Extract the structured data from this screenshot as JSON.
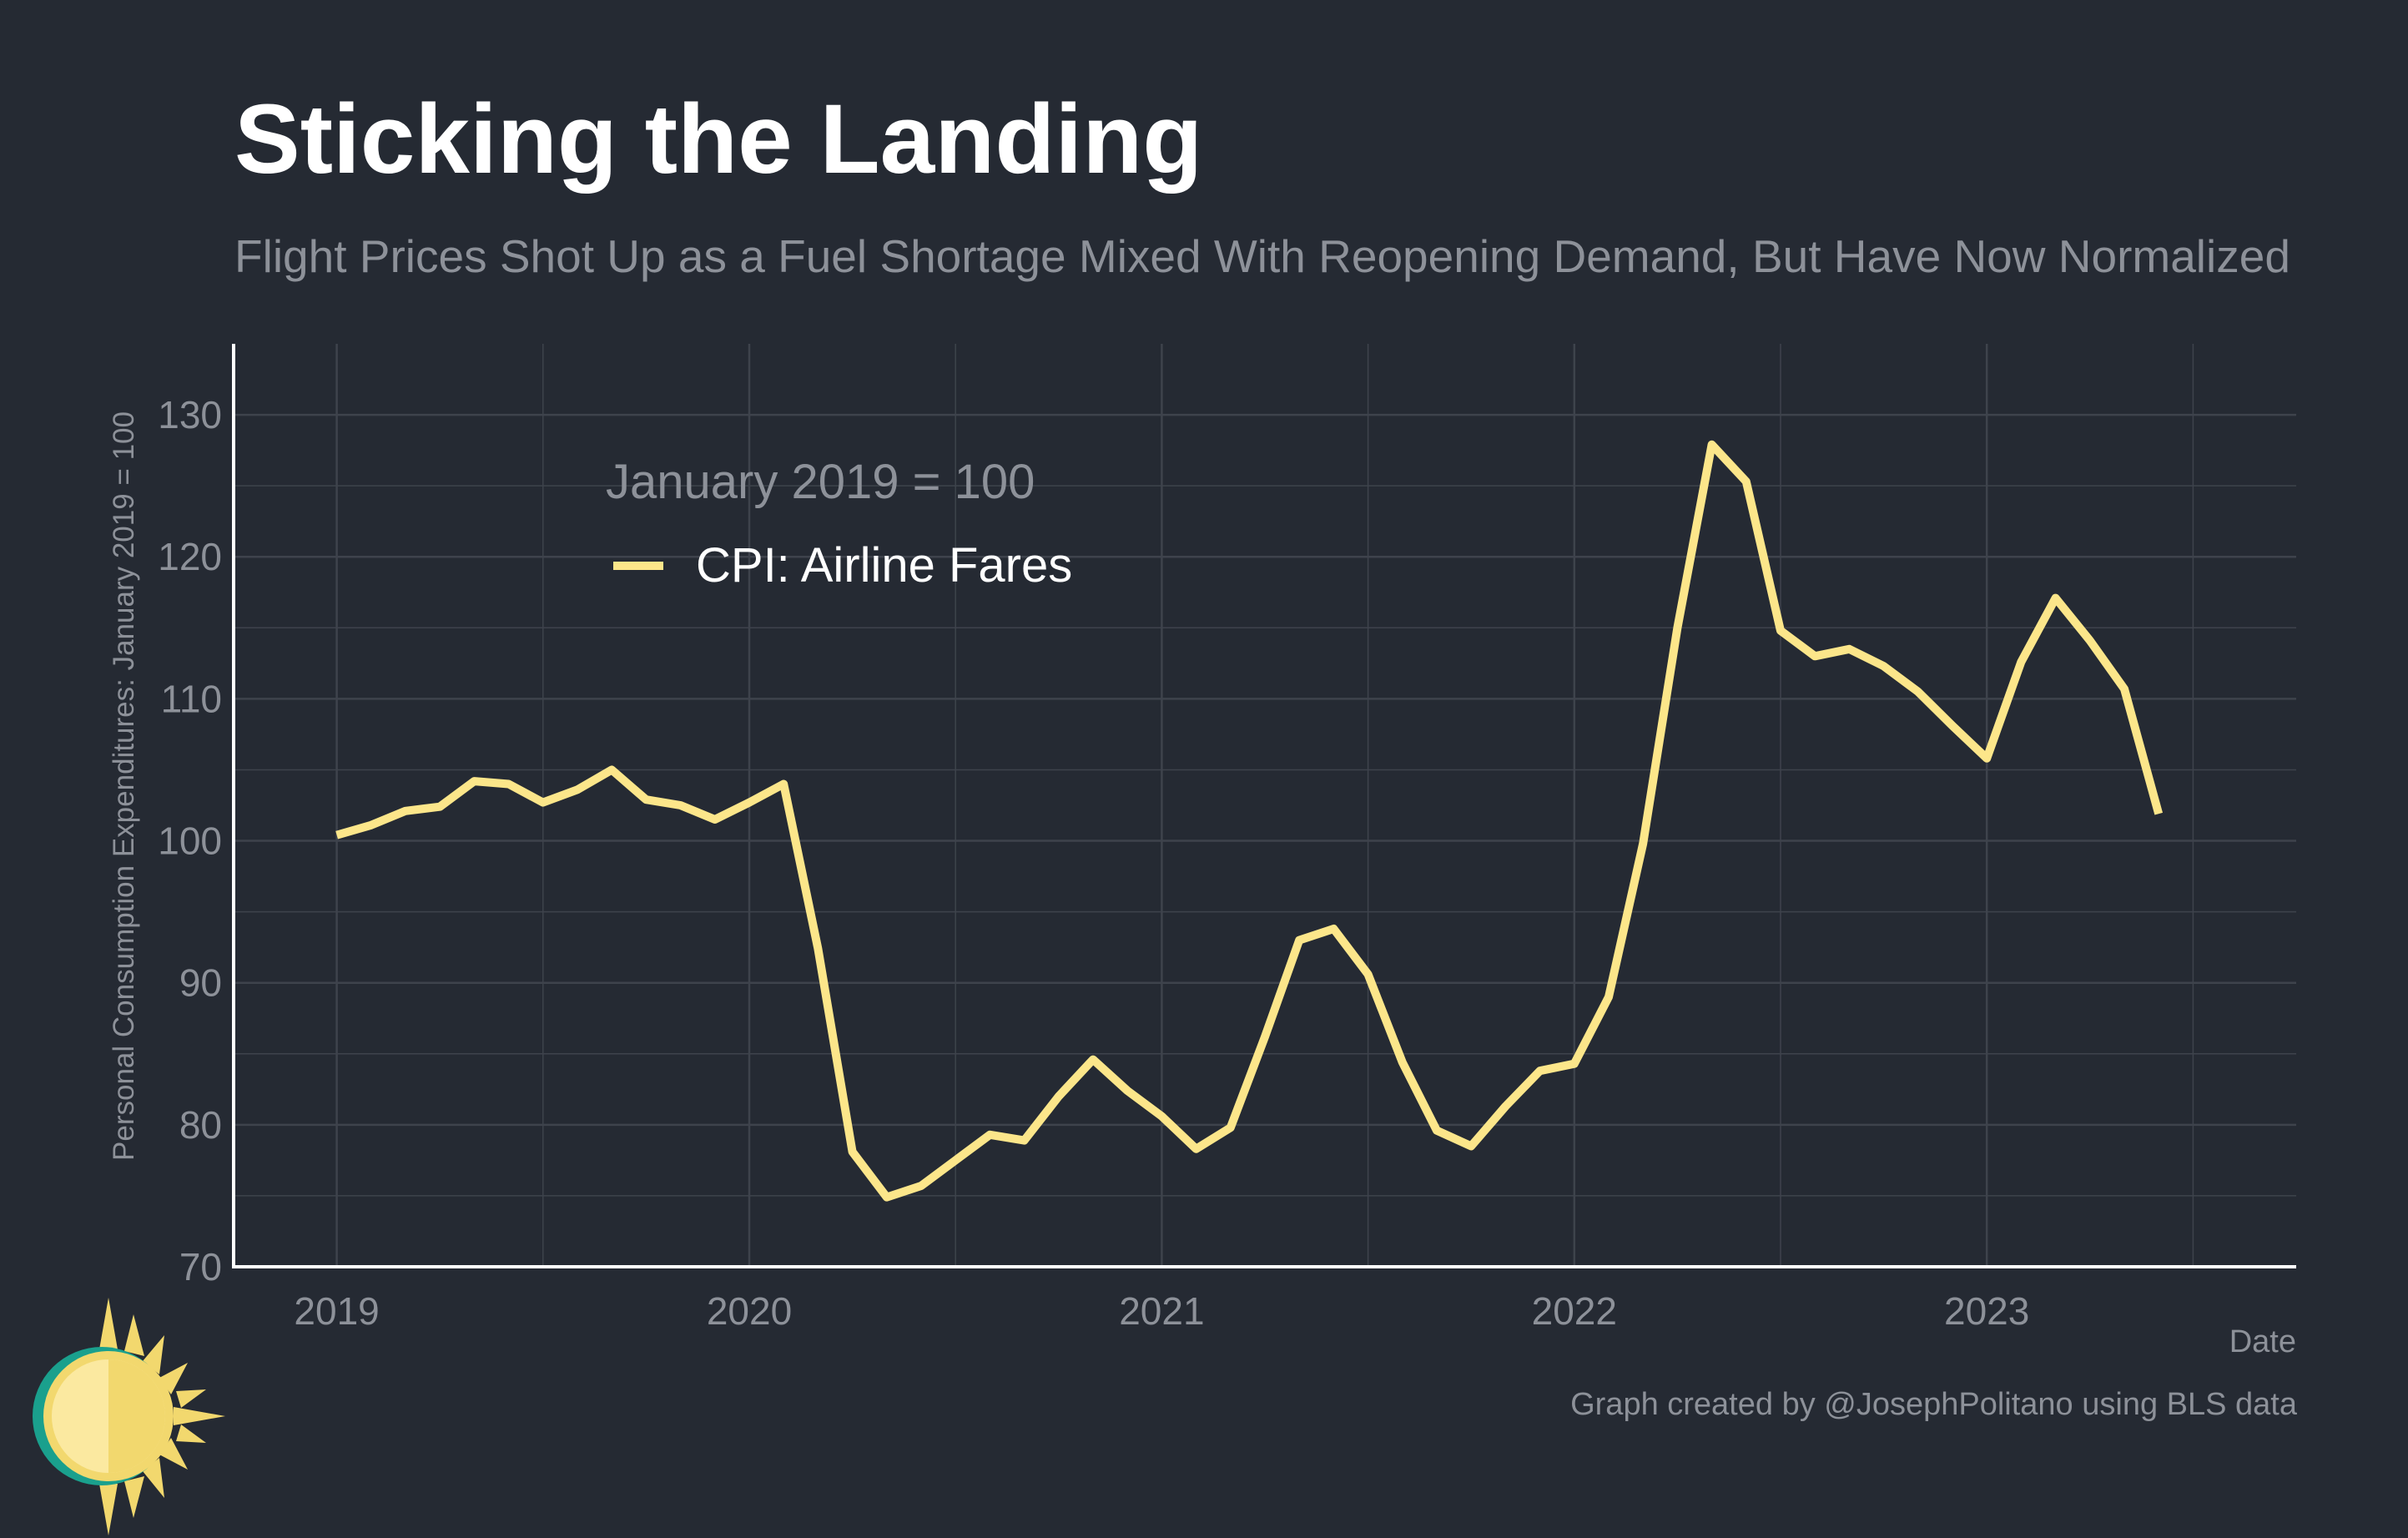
{
  "header": {
    "title": "Sticking the Landing",
    "subtitle": "Flight Prices Shot Up as a Fuel Shortage Mixed With Reopening Demand, But Have Now Normalized"
  },
  "caption": "Graph created by @JosephPolitano using BLS data",
  "colors": {
    "background": "#252a33",
    "line": "#fce68a",
    "grid": "#3e434c",
    "axis": "#ffffff",
    "muted_text": "#8d9199"
  },
  "chart_data": {
    "type": "line",
    "title": "Sticking the Landing",
    "subtitle": "Flight Prices Shot Up as a Fuel Shortage Mixed With Reopening Demand, But Have Now Normalized",
    "xlabel": "Date",
    "ylabel": "Personal Consumption Expenditures: January 2019 = 100",
    "legend_title": "January 2019 = 100",
    "legend_position": "top-left",
    "grid": true,
    "xlim": [
      "2018-10",
      "2023-10"
    ],
    "ylim": [
      70,
      135
    ],
    "x_ticks": [
      "2019",
      "2020",
      "2021",
      "2022",
      "2023"
    ],
    "y_ticks": [
      70,
      80,
      90,
      100,
      110,
      120,
      130
    ],
    "series": [
      {
        "name": "CPI: Airline Fares",
        "x": [
          "2019-01",
          "2019-02",
          "2019-03",
          "2019-04",
          "2019-05",
          "2019-06",
          "2019-07",
          "2019-08",
          "2019-09",
          "2019-10",
          "2019-11",
          "2019-12",
          "2020-01",
          "2020-02",
          "2020-03",
          "2020-04",
          "2020-05",
          "2020-06",
          "2020-07",
          "2020-08",
          "2020-09",
          "2020-10",
          "2020-11",
          "2020-12",
          "2021-01",
          "2021-02",
          "2021-03",
          "2021-04",
          "2021-05",
          "2021-06",
          "2021-07",
          "2021-08",
          "2021-09",
          "2021-10",
          "2021-11",
          "2021-12",
          "2022-01",
          "2022-02",
          "2022-03",
          "2022-04",
          "2022-05",
          "2022-06",
          "2022-07",
          "2022-08",
          "2022-09",
          "2022-10",
          "2022-11",
          "2022-12",
          "2023-01",
          "2023-02",
          "2023-03",
          "2023-04",
          "2023-05",
          "2023-06"
        ],
        "values": [
          100.4,
          101.1,
          102.1,
          102.4,
          104.2,
          104.0,
          102.7,
          103.6,
          105.0,
          102.9,
          102.5,
          101.5,
          102.7,
          104.0,
          92.4,
          78.1,
          74.9,
          75.7,
          77.5,
          79.3,
          78.9,
          82.0,
          84.6,
          82.4,
          80.6,
          78.3,
          79.8,
          86.2,
          93.0,
          93.8,
          90.6,
          84.4,
          79.6,
          78.5,
          81.3,
          83.8,
          84.3,
          89.0,
          99.8,
          115.0,
          127.9,
          125.3,
          114.8,
          113.0,
          113.5,
          112.3,
          110.5,
          108.1,
          105.8,
          112.6,
          117.1,
          114.1,
          110.7,
          101.9
        ]
      }
    ]
  }
}
